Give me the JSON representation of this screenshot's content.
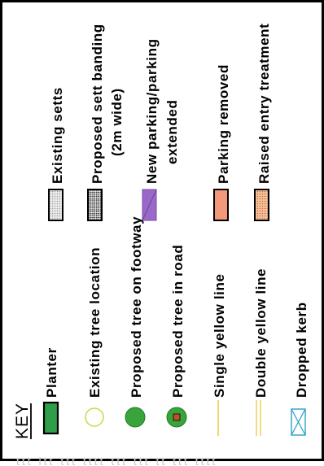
{
  "key": {
    "title": "KEY",
    "items": {
      "planter": "Planter",
      "existing_tree": "Existing tree location",
      "proposed_tree_footway": "Proposed tree on footway",
      "proposed_tree_road": "Proposed tree in road",
      "single_yellow": "Single yellow line",
      "double_yellow": "Double yellow line",
      "dropped_kerb": "Dropped kerb",
      "existing_setts": "Existing setts",
      "sett_banding_line1": "Proposed sett banding",
      "sett_banding_line2": "(2m wide)",
      "new_parking_line1": "New parking/parking",
      "new_parking_line2": "extended",
      "parking_removed": "Parking removed",
      "raised_entry": "Raised entry treatment"
    }
  },
  "colors": {
    "planter": "#2e9e48",
    "tree_outline": "#c9d84a",
    "tree_fill": "#3aa43a",
    "tree_road_box": "#c0502a",
    "yellow_line": "#f2c93a",
    "dropped_kerb": "#2aa0c8",
    "setts": "#d4d4d4",
    "sett_banding": "#6e6e6e",
    "new_parking": "#9a68c8",
    "parking_removed": "#f4987a",
    "raised_entry": "#f4b482"
  }
}
